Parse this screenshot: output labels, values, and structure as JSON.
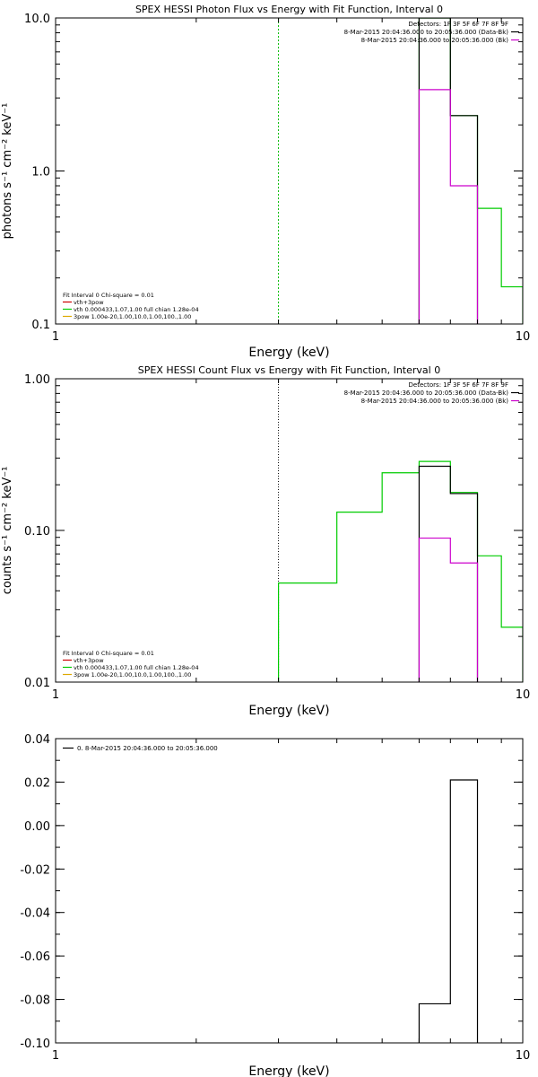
{
  "chart_data": [
    {
      "type": "line",
      "panel": "photon",
      "title": "SPEX HESSI Photon Flux vs Energy with Fit Function, Interval 0",
      "xlabel": "Energy (keV)",
      "ylabel": "photons s⁻¹ cm⁻² keV⁻¹",
      "x_scale": "log",
      "y_scale": "log",
      "xlim": [
        1,
        10
      ],
      "ylim": [
        0.1,
        10
      ],
      "x_ticks": [
        {
          "v": 1,
          "label": "1"
        },
        {
          "v": 10,
          "label": "10"
        }
      ],
      "y_ticks": [
        {
          "v": 0.1,
          "label": "0.1"
        },
        {
          "v": 1,
          "label": "1.0"
        },
        {
          "v": 10,
          "label": "10.0"
        }
      ],
      "grid": false,
      "vline": {
        "x": 3,
        "color": "#00bb00",
        "style": "dashed"
      },
      "legend_top": {
        "placement": "top-right",
        "lines": [
          {
            "text": "Detectors: 1F 3F 5F 6F 7F 8F 9F",
            "color": null
          },
          {
            "text": "8-Mar-2015 20:04:36.000 to 20:05:36.000 (Data-Bk)",
            "color": "#000000"
          },
          {
            "text": "8-Mar-2015 20:04:36.000 to 20:05:36.000 (Bk)",
            "color": "#cc00cc"
          }
        ]
      },
      "legend_bottom": {
        "placement": "bottom-left",
        "lines": [
          {
            "text": "Fit Interval 0   Chi-square = 0.01",
            "color": null
          },
          {
            "text": "vth+3pow",
            "color": "#cc0000"
          },
          {
            "text": "vth 0.000433,1.07,1.00  full chian 1.28e-04",
            "color": "#00cc00"
          },
          {
            "text": "3pow 1.00e-20,1.00,10.0,1.00,100.,1.00",
            "color": "#ddaa00"
          }
        ]
      },
      "series": [
        {
          "color": "#00cc00",
          "edges": [
            3,
            6,
            7,
            8,
            9,
            10
          ],
          "values": [
            0.001,
            10,
            2.3,
            0.57,
            0.175
          ]
        },
        {
          "color": "#000000",
          "edges": [
            6,
            7,
            8
          ],
          "values": [
            10,
            2.3
          ]
        },
        {
          "color": "#cc00cc",
          "edges": [
            6,
            7,
            8
          ],
          "values": [
            3.4,
            0.8
          ]
        }
      ]
    },
    {
      "type": "line",
      "panel": "count",
      "title": "SPEX HESSI Count Flux vs Energy with Fit Function, Interval 0",
      "xlabel": "Energy (keV)",
      "ylabel": "counts s⁻¹ cm⁻² keV⁻¹",
      "x_scale": "log",
      "y_scale": "log",
      "xlim": [
        1,
        10
      ],
      "ylim": [
        0.01,
        1
      ],
      "x_ticks": [
        {
          "v": 1,
          "label": "1"
        },
        {
          "v": 10,
          "label": "10"
        }
      ],
      "y_ticks": [
        {
          "v": 0.01,
          "label": "0.01"
        },
        {
          "v": 0.1,
          "label": "0.10"
        },
        {
          "v": 1,
          "label": "1.00"
        }
      ],
      "grid": false,
      "vline": {
        "x": 3,
        "color": "#000000",
        "style": "dotted"
      },
      "legend_top": {
        "placement": "top-right",
        "lines": [
          {
            "text": "Detectors: 1F 3F 5F 6F 7F 8F 9F",
            "color": null
          },
          {
            "text": "8-Mar-2015 20:04:36.000 to 20:05:36.000 (Data-Bk)",
            "color": "#000000"
          },
          {
            "text": "8-Mar-2015 20:04:36.000 to 20:05:36.000 (Bk)",
            "color": "#cc00cc"
          }
        ]
      },
      "legend_bottom": {
        "placement": "bottom-left",
        "lines": [
          {
            "text": "Fit Interval 0   Chi-square = 0.01",
            "color": null
          },
          {
            "text": "vth+3pow",
            "color": "#cc0000"
          },
          {
            "text": "vth 0.000433,1.07,1.00  full chian 1.28e-04",
            "color": "#00cc00"
          },
          {
            "text": "3pow 1.00e-20,1.00,10.0,1.00,100.,1.00",
            "color": "#ddaa00"
          }
        ]
      },
      "series": [
        {
          "color": "#00cc00",
          "edges": [
            3,
            4,
            5,
            6,
            7,
            8,
            9,
            10
          ],
          "values": [
            0.045,
            0.132,
            0.24,
            0.285,
            0.178,
            0.068,
            0.023
          ]
        },
        {
          "color": "#000000",
          "edges": [
            6,
            7,
            8
          ],
          "values": [
            0.265,
            0.175
          ]
        },
        {
          "color": "#cc00cc",
          "edges": [
            6,
            7,
            8
          ],
          "values": [
            0.089,
            0.061
          ]
        }
      ]
    },
    {
      "type": "line",
      "panel": "residuals",
      "title": "",
      "xlabel": "Energy (keV)",
      "ylabel": "",
      "x_scale": "log",
      "y_scale": "linear",
      "xlim": [
        1,
        10
      ],
      "ylim": [
        -0.1,
        0.04
      ],
      "x_ticks": [
        {
          "v": 1,
          "label": "1"
        },
        {
          "v": 10,
          "label": "10"
        }
      ],
      "y_ticks": [
        {
          "v": 0.04,
          "label": "0.04"
        },
        {
          "v": 0.02,
          "label": "0.02"
        },
        {
          "v": 0,
          "label": "0.00"
        },
        {
          "v": -0.02,
          "label": "-0.02"
        },
        {
          "v": -0.04,
          "label": "-0.04"
        },
        {
          "v": -0.06,
          "label": "-0.06"
        },
        {
          "v": -0.08,
          "label": "-0.08"
        },
        {
          "v": -0.1,
          "label": "-0.10"
        }
      ],
      "grid": false,
      "legend_top": {
        "placement": "top-left",
        "lines": [
          {
            "text": "0.  8-Mar-2015 20:04:36.000 to 20:05:36.000",
            "color": "#000000"
          }
        ]
      },
      "series": [
        {
          "color": "#000000",
          "edges": [
            6,
            7,
            8
          ],
          "values": [
            -0.082,
            0.021
          ]
        }
      ]
    }
  ]
}
